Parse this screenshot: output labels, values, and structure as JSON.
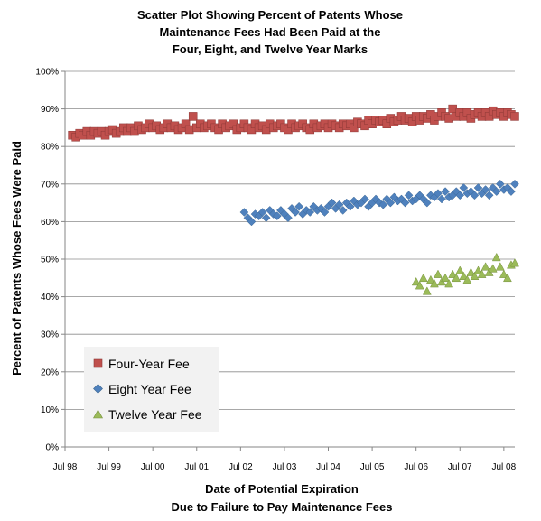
{
  "chart_data": {
    "type": "scatter",
    "title": [
      "Scatter Plot Showing Percent of Patents Whose",
      "Maintenance Fees Had Been Paid at the",
      "Four, Eight, and Twelve Year Marks"
    ],
    "xlabel": [
      "Date of Potential Expiration",
      "Due to Failure to Pay Maintenance Fees"
    ],
    "ylabel": "Percent of Patents Whose Fees Were Paid",
    "x_tick_labels": [
      "Jul 98",
      "Jul 99",
      "Jul 00",
      "Jul 01",
      "Jul 02",
      "Jul 03",
      "Jul 04",
      "Jul 05",
      "Jul 06",
      "Jul 07",
      "Jul 08"
    ],
    "y_tick_labels": [
      "0%",
      "10%",
      "20%",
      "30%",
      "40%",
      "50%",
      "60%",
      "70%",
      "80%",
      "90%",
      "100%"
    ],
    "xlim": [
      "1998-07",
      "2008-10"
    ],
    "ylim": [
      0,
      100
    ],
    "grid": "horizontal",
    "legend_placement": "bottom-left",
    "series": [
      {
        "name": "Four-Year Fee",
        "marker": "square",
        "color": "#c0504d",
        "points": [
          [
            "1998-09",
            83
          ],
          [
            "1998-10",
            82.5
          ],
          [
            "1998-11",
            83.5
          ],
          [
            "1998-12",
            83
          ],
          [
            "1999-01",
            84
          ],
          [
            "1999-02",
            83
          ],
          [
            "1999-03",
            84
          ],
          [
            "1999-04",
            83.5
          ],
          [
            "1999-05",
            84
          ],
          [
            "1999-06",
            83
          ],
          [
            "1999-07",
            84
          ],
          [
            "1999-08",
            84.5
          ],
          [
            "1999-09",
            83.5
          ],
          [
            "1999-10",
            84
          ],
          [
            "1999-11",
            85
          ],
          [
            "1999-12",
            84
          ],
          [
            "2000-01",
            85
          ],
          [
            "2000-02",
            84
          ],
          [
            "2000-03",
            85.5
          ],
          [
            "2000-04",
            84.5
          ],
          [
            "2000-05",
            85
          ],
          [
            "2000-06",
            86
          ],
          [
            "2000-07",
            85
          ],
          [
            "2000-08",
            85.5
          ],
          [
            "2000-09",
            84.5
          ],
          [
            "2000-10",
            85
          ],
          [
            "2000-11",
            86
          ],
          [
            "2000-12",
            85
          ],
          [
            "2001-01",
            85.5
          ],
          [
            "2001-02",
            84.5
          ],
          [
            "2001-03",
            85
          ],
          [
            "2001-04",
            86
          ],
          [
            "2001-05",
            84.5
          ],
          [
            "2001-06",
            88
          ],
          [
            "2001-07",
            85
          ],
          [
            "2001-08",
            86
          ],
          [
            "2001-09",
            85
          ],
          [
            "2001-10",
            85.5
          ],
          [
            "2001-11",
            86
          ],
          [
            "2001-12",
            85
          ],
          [
            "2002-01",
            84.5
          ],
          [
            "2002-02",
            86
          ],
          [
            "2002-03",
            85
          ],
          [
            "2002-04",
            85.5
          ],
          [
            "2002-05",
            86
          ],
          [
            "2002-06",
            84.5
          ],
          [
            "2002-07",
            85
          ],
          [
            "2002-08",
            86
          ],
          [
            "2002-09",
            85
          ],
          [
            "2002-10",
            84.5
          ],
          [
            "2002-11",
            86
          ],
          [
            "2002-12",
            85
          ],
          [
            "2003-01",
            85.5
          ],
          [
            "2003-02",
            84.5
          ],
          [
            "2003-03",
            86
          ],
          [
            "2003-04",
            85
          ],
          [
            "2003-05",
            85.5
          ],
          [
            "2003-06",
            86
          ],
          [
            "2003-07",
            85
          ],
          [
            "2003-08",
            84.5
          ],
          [
            "2003-09",
            86
          ],
          [
            "2003-10",
            85
          ],
          [
            "2003-11",
            85.5
          ],
          [
            "2003-12",
            86
          ],
          [
            "2004-01",
            85
          ],
          [
            "2004-02",
            84.5
          ],
          [
            "2004-03",
            86
          ],
          [
            "2004-04",
            85
          ],
          [
            "2004-05",
            85.5
          ],
          [
            "2004-06",
            86
          ],
          [
            "2004-07",
            85
          ],
          [
            "2004-08",
            86
          ],
          [
            "2004-09",
            85.5
          ],
          [
            "2004-10",
            85
          ],
          [
            "2004-11",
            86
          ],
          [
            "2004-12",
            85.5
          ],
          [
            "2005-01",
            86
          ],
          [
            "2005-02",
            85
          ],
          [
            "2005-03",
            86.5
          ],
          [
            "2005-04",
            86
          ],
          [
            "2005-05",
            85.5
          ],
          [
            "2005-06",
            87
          ],
          [
            "2005-07",
            86
          ],
          [
            "2005-08",
            87
          ],
          [
            "2005-09",
            86.5
          ],
          [
            "2005-10",
            87
          ],
          [
            "2005-11",
            86
          ],
          [
            "2005-12",
            87.5
          ],
          [
            "2006-01",
            86.5
          ],
          [
            "2006-02",
            87
          ],
          [
            "2006-03",
            88
          ],
          [
            "2006-04",
            87
          ],
          [
            "2006-05",
            87.5
          ],
          [
            "2006-06",
            86.5
          ],
          [
            "2006-07",
            88
          ],
          [
            "2006-08",
            87
          ],
          [
            "2006-09",
            88
          ],
          [
            "2006-10",
            87.5
          ],
          [
            "2006-11",
            88.5
          ],
          [
            "2006-12",
            87
          ],
          [
            "2007-01",
            88
          ],
          [
            "2007-02",
            89
          ],
          [
            "2007-03",
            88
          ],
          [
            "2007-04",
            87.5
          ],
          [
            "2007-05",
            90
          ],
          [
            "2007-06",
            88
          ],
          [
            "2007-07",
            89
          ],
          [
            "2007-08",
            88
          ],
          [
            "2007-09",
            89
          ],
          [
            "2007-10",
            87.5
          ],
          [
            "2007-11",
            88.5
          ],
          [
            "2007-12",
            89
          ],
          [
            "2008-01",
            88
          ],
          [
            "2008-02",
            89
          ],
          [
            "2008-03",
            88
          ],
          [
            "2008-04",
            89.5
          ],
          [
            "2008-05",
            88.5
          ],
          [
            "2008-06",
            89
          ],
          [
            "2008-07",
            88
          ],
          [
            "2008-08",
            89
          ],
          [
            "2008-09",
            88.5
          ],
          [
            "2008-10",
            88
          ]
        ]
      },
      {
        "name": "Eight Year Fee",
        "marker": "diamond",
        "color": "#4f81bd",
        "points": [
          [
            "2002-08",
            62.5
          ],
          [
            "2002-09",
            61
          ],
          [
            "2002-10",
            60
          ],
          [
            "2002-11",
            62
          ],
          [
            "2002-12",
            61.5
          ],
          [
            "2003-01",
            62.5
          ],
          [
            "2003-02",
            61
          ],
          [
            "2003-03",
            63
          ],
          [
            "2003-04",
            62
          ],
          [
            "2003-05",
            61.5
          ],
          [
            "2003-06",
            63
          ],
          [
            "2003-07",
            62
          ],
          [
            "2003-08",
            61
          ],
          [
            "2003-09",
            63.5
          ],
          [
            "2003-10",
            62.5
          ],
          [
            "2003-11",
            64
          ],
          [
            "2003-12",
            62
          ],
          [
            "2004-01",
            63
          ],
          [
            "2004-02",
            62.5
          ],
          [
            "2004-03",
            64
          ],
          [
            "2004-04",
            63
          ],
          [
            "2004-05",
            63.5
          ],
          [
            "2004-06",
            62.5
          ],
          [
            "2004-07",
            64
          ],
          [
            "2004-08",
            65
          ],
          [
            "2004-09",
            63.5
          ],
          [
            "2004-10",
            64.5
          ],
          [
            "2004-11",
            63
          ],
          [
            "2004-12",
            65
          ],
          [
            "2005-01",
            64
          ],
          [
            "2005-02",
            65.5
          ],
          [
            "2005-03",
            64.5
          ],
          [
            "2005-04",
            65
          ],
          [
            "2005-05",
            66
          ],
          [
            "2005-06",
            64
          ],
          [
            "2005-07",
            65
          ],
          [
            "2005-08",
            66
          ],
          [
            "2005-09",
            65
          ],
          [
            "2005-10",
            64.5
          ],
          [
            "2005-11",
            66
          ],
          [
            "2005-12",
            65
          ],
          [
            "2006-01",
            66.5
          ],
          [
            "2006-02",
            65.5
          ],
          [
            "2006-03",
            66
          ],
          [
            "2006-04",
            65
          ],
          [
            "2006-05",
            67
          ],
          [
            "2006-06",
            65.5
          ],
          [
            "2006-07",
            66
          ],
          [
            "2006-08",
            67
          ],
          [
            "2006-09",
            66
          ],
          [
            "2006-10",
            65
          ],
          [
            "2006-11",
            67
          ],
          [
            "2006-12",
            66.5
          ],
          [
            "2007-01",
            67.5
          ],
          [
            "2007-02",
            66
          ],
          [
            "2007-03",
            68
          ],
          [
            "2007-04",
            66.5
          ],
          [
            "2007-05",
            67
          ],
          [
            "2007-06",
            68
          ],
          [
            "2007-07",
            67
          ],
          [
            "2007-08",
            69
          ],
          [
            "2007-09",
            67.5
          ],
          [
            "2007-10",
            68
          ],
          [
            "2007-11",
            67
          ],
          [
            "2007-12",
            69
          ],
          [
            "2008-01",
            67.5
          ],
          [
            "2008-02",
            68.5
          ],
          [
            "2008-03",
            67
          ],
          [
            "2008-04",
            69
          ],
          [
            "2008-05",
            68
          ],
          [
            "2008-06",
            70
          ],
          [
            "2008-07",
            68.5
          ],
          [
            "2008-08",
            69
          ],
          [
            "2008-09",
            68
          ],
          [
            "2008-10",
            70
          ]
        ]
      },
      {
        "name": "Twelve Year Fee",
        "marker": "triangle",
        "color": "#9bbb59",
        "points": [
          [
            "2006-07",
            44
          ],
          [
            "2006-08",
            43
          ],
          [
            "2006-09",
            45
          ],
          [
            "2006-10",
            41.5
          ],
          [
            "2006-11",
            44.5
          ],
          [
            "2006-12",
            43.5
          ],
          [
            "2007-01",
            46
          ],
          [
            "2007-02",
            44
          ],
          [
            "2007-03",
            45
          ],
          [
            "2007-04",
            43.5
          ],
          [
            "2007-05",
            46
          ],
          [
            "2007-06",
            45
          ],
          [
            "2007-07",
            47
          ],
          [
            "2007-08",
            45.5
          ],
          [
            "2007-09",
            44.5
          ],
          [
            "2007-10",
            46.5
          ],
          [
            "2007-11",
            45.5
          ],
          [
            "2007-12",
            47
          ],
          [
            "2008-01",
            46
          ],
          [
            "2008-02",
            48
          ],
          [
            "2008-03",
            46.5
          ],
          [
            "2008-04",
            47.5
          ],
          [
            "2008-05",
            50.5
          ],
          [
            "2008-06",
            48
          ],
          [
            "2008-07",
            46
          ],
          [
            "2008-08",
            45
          ],
          [
            "2008-09",
            48.5
          ],
          [
            "2008-10",
            49
          ]
        ]
      }
    ]
  }
}
